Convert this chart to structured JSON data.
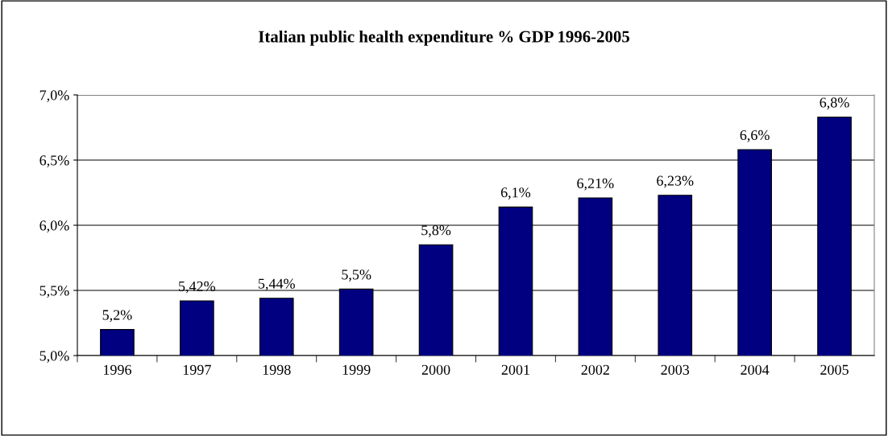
{
  "chart_data": {
    "type": "bar",
    "title": "Italian public health expenditure % GDP 1996-2005",
    "categories": [
      "1996",
      "1997",
      "1998",
      "1999",
      "2000",
      "2001",
      "2002",
      "2003",
      "2004",
      "2005"
    ],
    "values": [
      5.2,
      5.42,
      5.44,
      5.51,
      5.85,
      6.14,
      6.21,
      6.23,
      6.58,
      6.83
    ],
    "value_labels": [
      "5,2%",
      "5,42%",
      "5,44%",
      "5,5%",
      "5,8%",
      "6,1%",
      "6,21%",
      "6,23%",
      "6,6%",
      "6,8%"
    ],
    "color": "#000080",
    "ylim": [
      5.0,
      7.0
    ],
    "yticks": [
      {
        "value": 5.0,
        "label": "5,0%"
      },
      {
        "value": 5.5,
        "label": "5,5%"
      },
      {
        "value": 6.0,
        "label": "6,0%"
      },
      {
        "value": 6.5,
        "label": "6,5%"
      },
      {
        "value": 7.0,
        "label": "7,0%"
      }
    ],
    "grid": "y",
    "legend": false
  }
}
